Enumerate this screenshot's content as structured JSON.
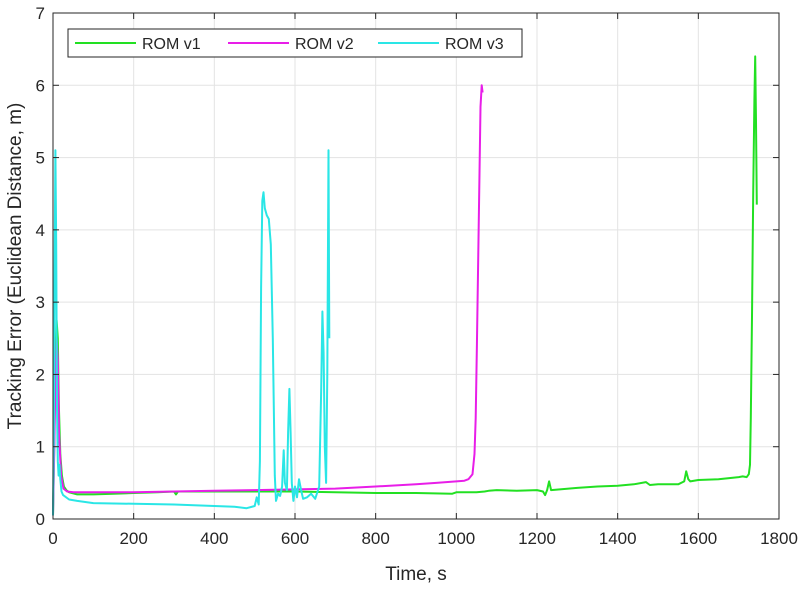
{
  "chart_data": {
    "type": "line",
    "title": "",
    "xlabel": "Time, s",
    "ylabel": "Tracking Error (Euclidean Distance, m)",
    "xlim": [
      0,
      1800
    ],
    "ylim": [
      0,
      7
    ],
    "xticks": [
      0,
      200,
      400,
      600,
      800,
      1000,
      1200,
      1400,
      1600,
      1800
    ],
    "yticks": [
      0,
      1,
      2,
      3,
      4,
      5,
      6,
      7
    ],
    "grid": true,
    "legend_position": "top-left",
    "series": [
      {
        "name": "ROM v1",
        "color": "#22e022",
        "points": [
          [
            0,
            0.05
          ],
          [
            3,
            1.0
          ],
          [
            6,
            2.2
          ],
          [
            9,
            2.75
          ],
          [
            12,
            2.5
          ],
          [
            15,
            1.5
          ],
          [
            18,
            0.9
          ],
          [
            22,
            0.6
          ],
          [
            27,
            0.45
          ],
          [
            33,
            0.4
          ],
          [
            40,
            0.37
          ],
          [
            60,
            0.34
          ],
          [
            100,
            0.34
          ],
          [
            150,
            0.35
          ],
          [
            200,
            0.36
          ],
          [
            260,
            0.37
          ],
          [
            300,
            0.38
          ],
          [
            305,
            0.34
          ],
          [
            310,
            0.38
          ],
          [
            400,
            0.38
          ],
          [
            500,
            0.38
          ],
          [
            600,
            0.38
          ],
          [
            700,
            0.37
          ],
          [
            800,
            0.36
          ],
          [
            900,
            0.36
          ],
          [
            990,
            0.35
          ],
          [
            1000,
            0.37
          ],
          [
            1050,
            0.37
          ],
          [
            1070,
            0.38
          ],
          [
            1080,
            0.39
          ],
          [
            1100,
            0.4
          ],
          [
            1150,
            0.39
          ],
          [
            1200,
            0.4
          ],
          [
            1215,
            0.38
          ],
          [
            1220,
            0.33
          ],
          [
            1225,
            0.4
          ],
          [
            1230,
            0.52
          ],
          [
            1235,
            0.4
          ],
          [
            1300,
            0.43
          ],
          [
            1350,
            0.45
          ],
          [
            1400,
            0.46
          ],
          [
            1440,
            0.48
          ],
          [
            1470,
            0.51
          ],
          [
            1480,
            0.47
          ],
          [
            1500,
            0.48
          ],
          [
            1550,
            0.48
          ],
          [
            1565,
            0.52
          ],
          [
            1570,
            0.66
          ],
          [
            1575,
            0.55
          ],
          [
            1580,
            0.52
          ],
          [
            1600,
            0.54
          ],
          [
            1650,
            0.55
          ],
          [
            1700,
            0.58
          ],
          [
            1710,
            0.59
          ],
          [
            1720,
            0.58
          ],
          [
            1725,
            0.62
          ],
          [
            1728,
            0.75
          ],
          [
            1730,
            1.4
          ],
          [
            1733,
            2.8
          ],
          [
            1736,
            4.5
          ],
          [
            1739,
            5.8
          ],
          [
            1741,
            6.4
          ],
          [
            1743,
            5.5
          ],
          [
            1745,
            4.35
          ]
        ]
      },
      {
        "name": "ROM v2",
        "color": "#e81ee8",
        "points": [
          [
            0,
            0.05
          ],
          [
            3,
            0.9
          ],
          [
            6,
            1.9
          ],
          [
            9,
            2.5
          ],
          [
            12,
            2.2
          ],
          [
            15,
            1.2
          ],
          [
            20,
            0.6
          ],
          [
            26,
            0.42
          ],
          [
            35,
            0.38
          ],
          [
            50,
            0.37
          ],
          [
            100,
            0.37
          ],
          [
            200,
            0.37
          ],
          [
            300,
            0.38
          ],
          [
            400,
            0.39
          ],
          [
            500,
            0.4
          ],
          [
            600,
            0.41
          ],
          [
            700,
            0.42
          ],
          [
            800,
            0.45
          ],
          [
            900,
            0.48
          ],
          [
            950,
            0.5
          ],
          [
            1000,
            0.52
          ],
          [
            1020,
            0.53
          ],
          [
            1030,
            0.55
          ],
          [
            1040,
            0.62
          ],
          [
            1045,
            0.9
          ],
          [
            1048,
            1.4
          ],
          [
            1051,
            2.4
          ],
          [
            1054,
            3.5
          ],
          [
            1057,
            4.6
          ],
          [
            1060,
            5.7
          ],
          [
            1063,
            6.0
          ],
          [
            1065,
            5.9
          ]
        ]
      },
      {
        "name": "ROM v3",
        "color": "#2ae6e6",
        "points": [
          [
            0,
            0.05
          ],
          [
            2,
            1.2
          ],
          [
            4,
            3.5
          ],
          [
            6,
            5.1
          ],
          [
            8,
            3.8
          ],
          [
            10,
            1.5
          ],
          [
            12,
            0.8
          ],
          [
            14,
            0.6
          ],
          [
            16,
            0.75
          ],
          [
            18,
            0.55
          ],
          [
            21,
            0.38
          ],
          [
            25,
            0.33
          ],
          [
            40,
            0.27
          ],
          [
            60,
            0.25
          ],
          [
            100,
            0.22
          ],
          [
            200,
            0.21
          ],
          [
            300,
            0.2
          ],
          [
            400,
            0.18
          ],
          [
            450,
            0.17
          ],
          [
            480,
            0.15
          ],
          [
            500,
            0.18
          ],
          [
            505,
            0.3
          ],
          [
            510,
            0.2
          ],
          [
            513,
            0.8
          ],
          [
            516,
            3.2
          ],
          [
            519,
            4.4
          ],
          [
            522,
            4.52
          ],
          [
            525,
            4.3
          ],
          [
            530,
            4.2
          ],
          [
            535,
            4.15
          ],
          [
            540,
            3.8
          ],
          [
            545,
            2.5
          ],
          [
            550,
            0.6
          ],
          [
            553,
            0.25
          ],
          [
            558,
            0.35
          ],
          [
            563,
            0.32
          ],
          [
            568,
            0.45
          ],
          [
            572,
            0.95
          ],
          [
            575,
            0.5
          ],
          [
            580,
            0.4
          ],
          [
            583,
            1.2
          ],
          [
            586,
            1.8
          ],
          [
            589,
            1.2
          ],
          [
            592,
            0.5
          ],
          [
            596,
            0.25
          ],
          [
            600,
            0.45
          ],
          [
            605,
            0.3
          ],
          [
            610,
            0.55
          ],
          [
            615,
            0.4
          ],
          [
            620,
            0.28
          ],
          [
            630,
            0.3
          ],
          [
            640,
            0.35
          ],
          [
            650,
            0.28
          ],
          [
            660,
            0.45
          ],
          [
            665,
            1.8
          ],
          [
            668,
            2.87
          ],
          [
            671,
            2.3
          ],
          [
            674,
            1.0
          ],
          [
            677,
            0.5
          ],
          [
            680,
            2.0
          ],
          [
            683,
            5.1
          ],
          [
            685,
            2.5
          ]
        ]
      }
    ]
  }
}
